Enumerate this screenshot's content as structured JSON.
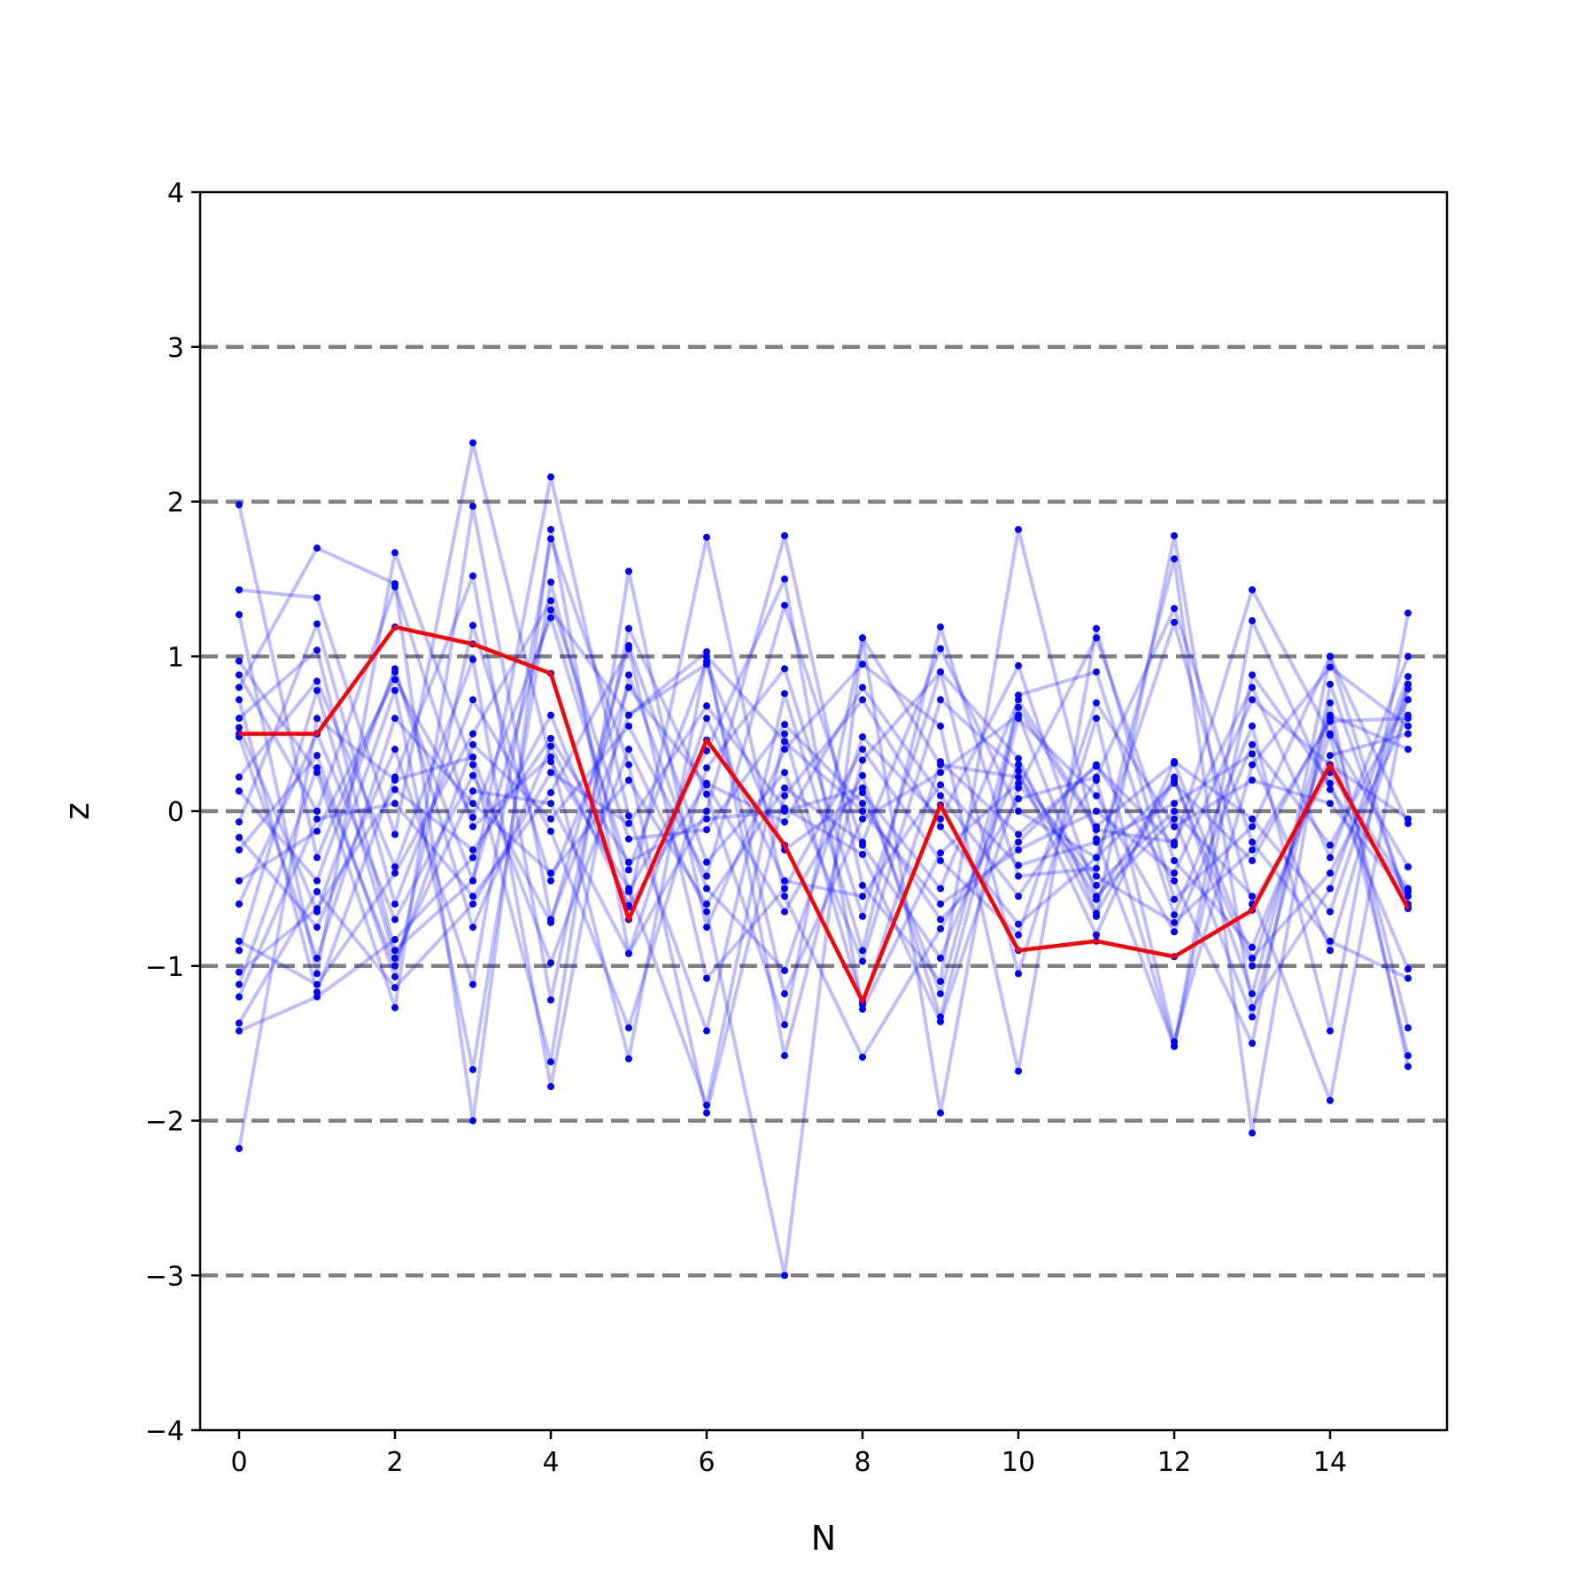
{
  "chart_data": {
    "type": "line",
    "title": "",
    "xlabel": "N",
    "ylabel": "z",
    "xlim": [
      -0.5,
      15.5
    ],
    "ylim": [
      -4,
      4
    ],
    "x": [
      0,
      1,
      2,
      3,
      4,
      5,
      6,
      7,
      8,
      9,
      10,
      11,
      12,
      13,
      14,
      15
    ],
    "x_ticks": [
      0,
      2,
      4,
      6,
      8,
      10,
      12,
      14
    ],
    "y_ticks": [
      -4,
      -3,
      -2,
      -1,
      0,
      1,
      2,
      3,
      4
    ],
    "y_tick_labels": [
      "−4",
      "−3",
      "−2",
      "−1",
      "0",
      "1",
      "2",
      "3",
      "4"
    ],
    "reference_lines": {
      "y": [
        -3,
        -2,
        -1,
        0,
        1,
        2,
        3
      ],
      "style": "dashed",
      "color": "#808080"
    },
    "trials_color": "#0000ff",
    "highlight_color": "#ff0000",
    "trials": [
      [
        1.98,
        -0.3,
        0.9,
        -0.45,
        1.3,
        0.62,
        0.95,
        -0.25,
        0.12,
        -0.5,
        0.72,
        -0.1,
        0.31,
        -0.95,
        -0.4,
        0.62
      ],
      [
        1.43,
        1.38,
        -0.15,
        2.38,
        0.32,
        -0.5,
        -1.9,
        0.5,
        -1.25,
        0.32,
        -0.15,
        0.29,
        -0.22,
        1.43,
        0.49,
        -1.58
      ],
      [
        1.27,
        -1.05,
        1.67,
        0.3,
        -1.62,
        1.55,
        -0.75,
        0.4,
        0.95,
        0.55,
        -1.68,
        1.18,
        -0.57,
        -0.1,
        1.0,
        -0.08
      ],
      [
        0.97,
        0.25,
        -1.27,
        1.97,
        -0.7,
        0.62,
        1.03,
        -1.58,
        0.33,
        0.9,
        0.34,
        -0.68,
        1.78,
        -1.27,
        -0.5,
        0.87
      ],
      [
        0.8,
        1.7,
        1.47,
        -2.0,
        1.82,
        -0.92,
        0.0,
        1.78,
        -0.48,
        -1.1,
        1.82,
        -0.18,
        -1.52,
        0.88,
        0.18,
        -1.02
      ],
      [
        0.72,
        -1.17,
        0.22,
        1.52,
        -1.22,
        1.18,
        0.11,
        -1.38,
        1.12,
        -1.95,
        0.75,
        0.9,
        -0.67,
        0.55,
        -1.42,
        1.28
      ],
      [
        0.6,
        1.04,
        -0.9,
        -0.45,
        2.16,
        -0.03,
        -1.42,
        0.76,
        -0.9,
        1.19,
        -0.42,
        -0.37,
        1.63,
        -2.08,
        0.82,
        -0.6
      ],
      [
        0.54,
        -0.65,
        0.78,
        -1.67,
        1.48,
        -0.52,
        0.39,
        1.5,
        -1.28,
        -0.27,
        0.18,
        -0.48,
        0.0,
        -0.55,
        -1.87,
        0.79
      ],
      [
        0.5,
        0.5,
        1.19,
        1.08,
        0.89,
        -0.7,
        0.46,
        -0.22,
        -1.23,
        0.04,
        -0.9,
        -0.84,
        -0.94,
        -0.64,
        0.3,
        -0.63
      ],
      [
        0.22,
        0.84,
        -0.36,
        0.98,
        -1.78,
        0.88,
        -0.5,
        -1.03,
        0.48,
        -0.05,
        0.94,
        -0.55,
        -0.05,
        -1.33,
        0.62,
        0.4
      ],
      [
        0.13,
        -0.45,
        0.92,
        -0.75,
        0.42,
        -0.61,
        1.77,
        -0.55,
        -1.59,
        -0.76,
        0.08,
        0.22,
        1.31,
        -0.2,
        -0.84,
        -1.08
      ],
      [
        -0.07,
        1.21,
        -0.6,
        0.72,
        -0.13,
        -1.4,
        0.28,
        0.92,
        -0.68,
        0.9,
        -1.05,
        0.6,
        -1.49,
        0.3,
        0.93,
        0.55
      ],
      [
        -0.17,
        -0.75,
        0.4,
        -1.12,
        1.76,
        0.3,
        -1.95,
        0.1,
        0.72,
        -0.1,
        -0.73,
        -0.3,
        1.22,
        -0.6,
        0.25,
        -0.5
      ],
      [
        -0.25,
        0.36,
        -1.07,
        1.2,
        -0.45,
        0.8,
        0.17,
        -0.65,
        0.23,
        -1.33,
        0.6,
        0.1,
        -0.78,
        0.43,
        -0.22,
        0.72
      ],
      [
        -0.45,
        -0.13,
        0.85,
        -0.04,
        1.25,
        -0.38,
        0.97,
        -1.18,
        -0.05,
        0.25,
        0.62,
        -0.66,
        0.2,
        -1.0,
        0.5,
        -0.36
      ],
      [
        -0.6,
        0.5,
        -0.7,
        0.23,
        -0.72,
        1.07,
        -0.33,
        0.25,
        -0.97,
        0.72,
        0.26,
        -0.8,
        0.32,
        -0.05,
        -0.65,
        0.82
      ],
      [
        -0.84,
        -1.12,
        -0.4,
        0.5,
        1.36,
        -0.18,
        -0.12,
        0.56,
        0.05,
        -0.7,
        -0.2,
        0.3,
        -0.45,
        -1.5,
        1.0,
        -0.62
      ],
      [
        -0.9,
        0.78,
        -0.95,
        0.13,
        0.05,
        -0.92,
        0.6,
        -0.45,
        -0.55,
        0.17,
        -0.35,
        -0.2,
        0.05,
        0.37,
        -0.9,
        0.82
      ],
      [
        -1.04,
        -0.63,
        0.14,
        -0.25,
        0.47,
        -0.33,
        -0.05,
        0.0,
        0.15,
        -1.18,
        0.67,
        -0.12,
        -0.2,
        0.8,
        -0.3,
        1.0
      ],
      [
        -1.12,
        0.28,
        -1.0,
        0.43,
        -0.05,
        0.55,
        -0.42,
        1.33,
        -0.22,
        -0.95,
        0.3,
        -0.57,
        0.22,
        -1.18,
        0.7,
        -1.65
      ],
      [
        -1.2,
        -0.05,
        0.05,
        -0.55,
        0.12,
        1.05,
        -1.08,
        -0.5,
        0.4,
        -0.32,
        -0.8,
        0.7,
        -0.1,
        0.2,
        0.05,
        -0.55
      ],
      [
        -1.37,
        -0.52,
        -1.14,
        -0.6,
        0.25,
        -0.08,
        0.68,
        0.02,
        -0.28,
        -1.36,
        0.15,
        1.12,
        -0.32,
        -0.88,
        0.36,
        0.5
      ],
      [
        -1.42,
        -1.2,
        -0.83,
        -0.3,
        0.62,
        -0.62,
        0.18,
        -0.07,
        0.8,
        0.1,
        -0.55,
        0.2,
        -1.52,
        1.23,
        0.14,
        -0.52
      ],
      [
        -2.18,
        0.6,
        0.2,
        0.35,
        -0.98,
        0.4,
        -0.65,
        -3.0,
        1.12,
        0.3,
        0.22,
        -0.42,
        -0.72,
        -0.25,
        0.58,
        0.6
      ],
      [
        0.88,
        0.0,
        1.45,
        -0.1,
        0.35,
        -1.6,
        1.0,
        0.45,
        0.0,
        -0.6,
        -0.25,
        0.0,
        -0.4,
        0.72,
        0.3,
        -0.05
      ],
      [
        0.48,
        -0.95,
        0.6,
        0.05,
        -0.4,
        0.2,
        -0.6,
        0.15,
        -0.2,
        1.05,
        0.0,
        -0.3,
        0.18,
        -0.32,
        0.6,
        -1.4
      ]
    ]
  }
}
